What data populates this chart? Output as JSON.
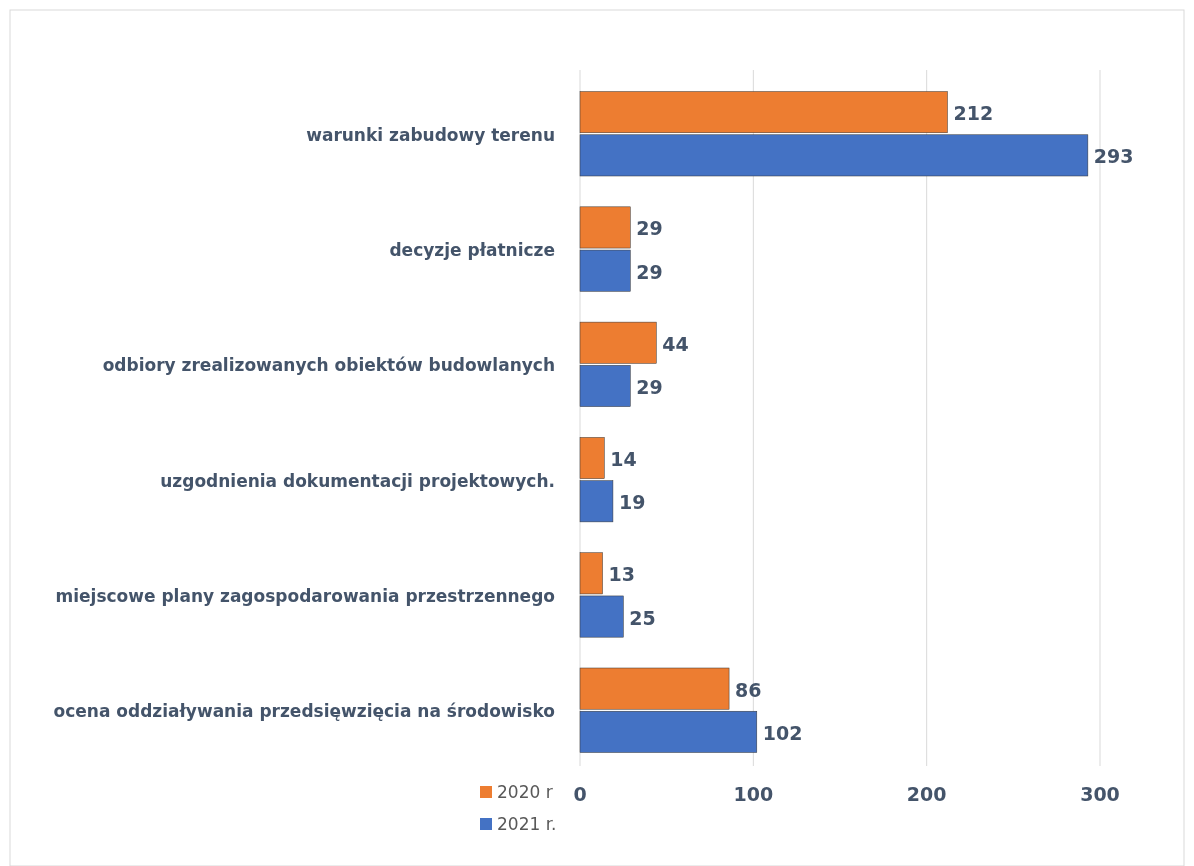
{
  "chart_data": {
    "type": "bar",
    "orientation": "horizontal",
    "categories": [
      "warunki zabudowy terenu",
      "decyzje płatnicze",
      "odbiory zrealizowanych obiektów budowlanych",
      "uzgodnienia dokumentacji projektowych.",
      "miejscowe plany zagospodarowania przestrzennego",
      "ocena oddziaływania przedsięwzięcia na środowisko"
    ],
    "series": [
      {
        "name": "2020 r",
        "color": "#ed7d31",
        "values": [
          212,
          29,
          44,
          14,
          13,
          86
        ]
      },
      {
        "name": "2021 r.",
        "color": "#4472c4",
        "values": [
          293,
          29,
          29,
          19,
          25,
          102
        ]
      }
    ],
    "xlim": [
      0,
      300
    ],
    "xticks": [
      0,
      100,
      200,
      300
    ],
    "grid": "x",
    "legend": "bottom",
    "data_labels": true
  }
}
